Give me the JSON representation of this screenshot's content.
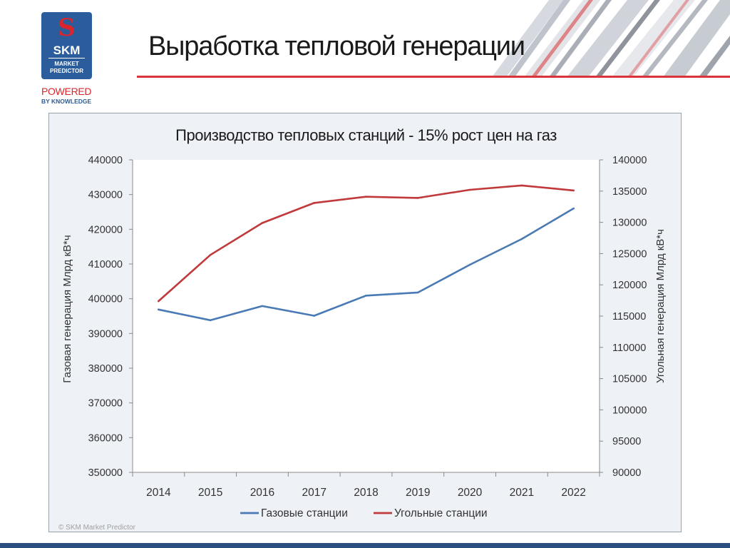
{
  "header": {
    "title": "Выработка тепловой генерации"
  },
  "logo": {
    "mark": "S",
    "name": "SKM",
    "subtitle_line1": "MARKET",
    "subtitle_line2": "PREDICTOR",
    "powered": "POWERED",
    "by_knowledge": "BY KNOWLEDGE"
  },
  "footer": {
    "copyright": "© SKM Market Predictor"
  },
  "colors": {
    "accent_red": "#d9343a",
    "brand_blue": "#2b5c9b",
    "gas_series": "#4a7ab5",
    "coal_series": "#c0393b"
  },
  "chart_data": {
    "type": "line",
    "title": "Производство тепловых станций - 15% рост цен на газ",
    "x": [
      "2014",
      "2015",
      "2016",
      "2017",
      "2018",
      "2019",
      "2020",
      "2021",
      "2022"
    ],
    "ylabel_left": "Газовая генерация Млрд кВ*ч",
    "ylabel_right": "Угольная  генерация Млрд кВ*ч",
    "ylim_left": [
      350000,
      440000
    ],
    "yticks_left": [
      350000,
      360000,
      370000,
      380000,
      390000,
      400000,
      410000,
      420000,
      430000,
      440000
    ],
    "ylim_right": [
      90000,
      140000
    ],
    "yticks_right": [
      90000,
      95000,
      100000,
      105000,
      110000,
      115000,
      120000,
      125000,
      130000,
      135000,
      140000
    ],
    "legend_position": "bottom",
    "grid": false,
    "series": [
      {
        "name": "Газовые станции",
        "axis": "left",
        "color": "#4a7ab5",
        "values": [
          396900,
          393800,
          397900,
          395100,
          400900,
          401800,
          409800,
          417200,
          426000
        ]
      },
      {
        "name": "Угольные станции",
        "axis": "right",
        "color": "#c0393b",
        "values": [
          117400,
          124800,
          129900,
          133100,
          134100,
          133900,
          135200,
          135900,
          135100
        ]
      }
    ]
  }
}
